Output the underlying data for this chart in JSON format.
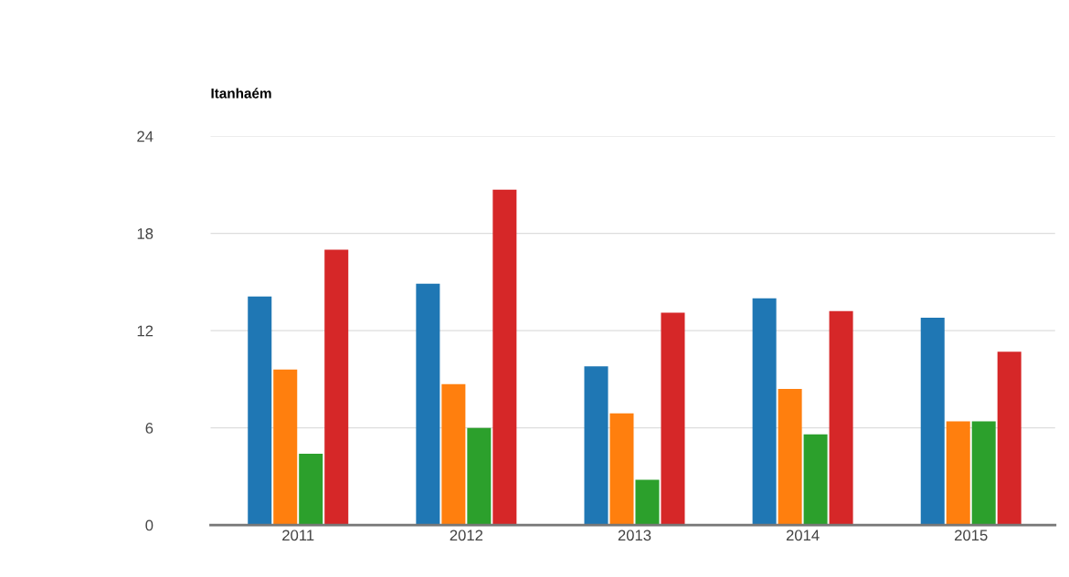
{
  "chart_data": {
    "type": "bar",
    "title": "Itanhaém",
    "categories": [
      "2011",
      "2012",
      "2013",
      "2014",
      "2015"
    ],
    "series": [
      {
        "color": "#1f77b4",
        "values": [
          14.1,
          14.9,
          9.8,
          14.0,
          12.8
        ]
      },
      {
        "color": "#ff7f0e",
        "values": [
          9.6,
          8.7,
          6.9,
          8.4,
          6.4
        ]
      },
      {
        "color": "#2ca02c",
        "values": [
          4.4,
          6.0,
          2.8,
          5.6,
          6.4
        ]
      },
      {
        "color": "#d62728",
        "values": [
          17.0,
          20.7,
          13.1,
          13.2,
          10.7
        ]
      }
    ],
    "ylim": [
      0,
      24
    ],
    "yticks": [
      0,
      6,
      12,
      18,
      24
    ],
    "grid": "y"
  }
}
